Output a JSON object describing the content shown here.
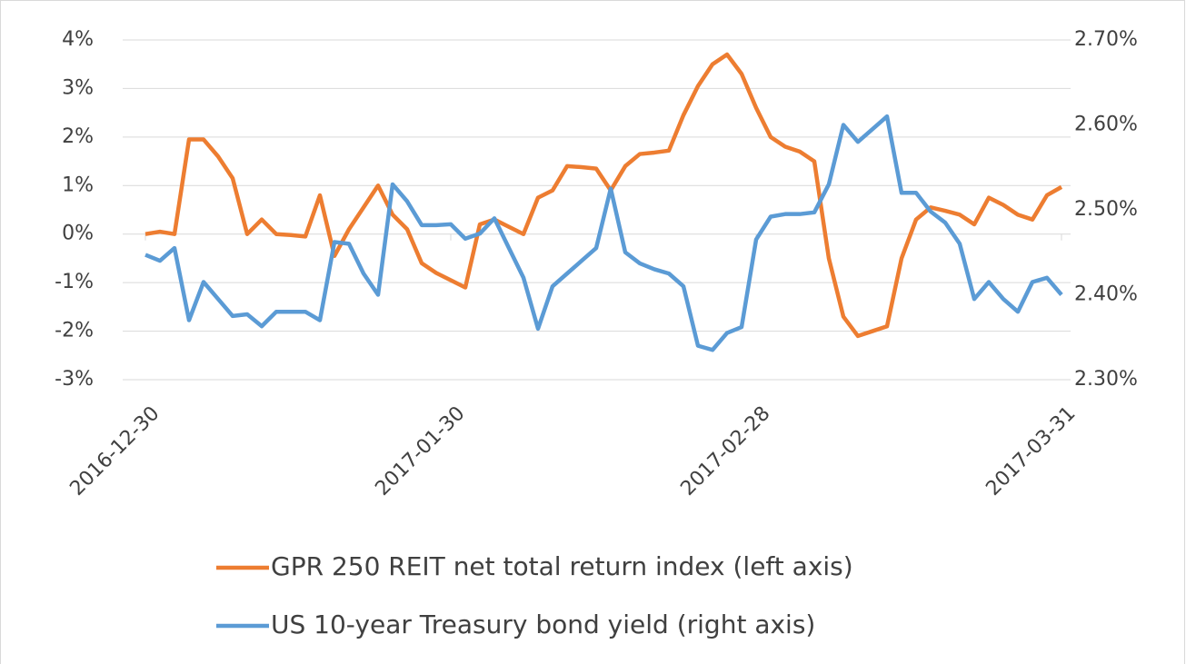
{
  "chart_data": {
    "type": "line",
    "categories": [
      "2016-12-30",
      null,
      null,
      null,
      null,
      null,
      null,
      null,
      null,
      null,
      null,
      null,
      null,
      null,
      null,
      null,
      null,
      null,
      null,
      null,
      null,
      "2017-01-30",
      null,
      null,
      null,
      null,
      null,
      null,
      null,
      null,
      null,
      null,
      null,
      null,
      null,
      null,
      null,
      null,
      null,
      null,
      null,
      null,
      "2017-02-28",
      null,
      null,
      null,
      null,
      null,
      null,
      null,
      null,
      null,
      null,
      null,
      null,
      null,
      null,
      null,
      null,
      null,
      null,
      null,
      null,
      "2017-03-31"
    ],
    "series": [
      {
        "name": "GPR 250 REIT net total return index (left axis)",
        "color": "#ed7d31",
        "axis": "y",
        "values": [
          0.0,
          0.05,
          0.0,
          1.95,
          1.95,
          1.6,
          1.15,
          0.0,
          0.3,
          0.0,
          -0.02,
          -0.05,
          0.8,
          -0.45,
          0.1,
          0.55,
          1.0,
          0.4,
          0.1,
          -0.6,
          -0.8,
          -0.95,
          -1.1,
          0.2,
          0.3,
          0.15,
          0.0,
          0.75,
          0.9,
          1.4,
          1.38,
          1.35,
          0.9,
          1.4,
          1.65,
          1.68,
          1.72,
          2.45,
          3.05,
          3.5,
          3.7,
          3.3,
          2.6,
          2.0,
          1.8,
          1.7,
          1.5,
          -0.5,
          -1.7,
          -2.1,
          -2.0,
          -1.9,
          -0.5,
          0.3,
          0.55,
          0.48,
          0.4,
          0.2,
          0.75,
          0.6,
          0.4,
          0.3,
          0.8,
          0.97
        ]
      },
      {
        "name": "US 10-year Treasury bond yield (right axis)",
        "color": "#5b9bd5",
        "axis": "y2",
        "values": [
          2.447,
          2.44,
          2.455,
          2.37,
          2.415,
          2.395,
          2.375,
          2.377,
          2.363,
          2.38,
          2.38,
          2.38,
          2.37,
          2.462,
          2.46,
          2.425,
          2.4,
          2.53,
          2.51,
          2.482,
          2.482,
          2.483,
          2.466,
          2.472,
          2.49,
          2.455,
          2.42,
          2.36,
          2.41,
          2.425,
          2.44,
          2.455,
          2.525,
          2.45,
          2.437,
          2.43,
          2.425,
          2.41,
          2.34,
          2.335,
          2.355,
          2.362,
          2.465,
          2.492,
          2.495,
          2.495,
          2.497,
          2.53,
          2.6,
          2.58,
          2.595,
          2.61,
          2.52,
          2.52,
          2.498,
          2.485,
          2.46,
          2.395,
          2.415,
          2.395,
          2.38,
          2.415,
          2.42,
          2.4
        ]
      }
    ],
    "ylim": [
      -3,
      4
    ],
    "yticks": [
      {
        "value": -3,
        "label": "-3%"
      },
      {
        "value": -2,
        "label": "-2%"
      },
      {
        "value": -1,
        "label": "-1%"
      },
      {
        "value": 0,
        "label": "0%"
      },
      {
        "value": 1,
        "label": "1%"
      },
      {
        "value": 2,
        "label": "2%"
      },
      {
        "value": 3,
        "label": "3%"
      },
      {
        "value": 4,
        "label": "4%"
      }
    ],
    "y2lim": [
      2.3,
      2.7
    ],
    "y2ticks": [
      {
        "value": 2.3,
        "label": "2.30%"
      },
      {
        "value": 2.4,
        "label": "2.40%"
      },
      {
        "value": 2.5,
        "label": "2.50%"
      },
      {
        "value": 2.6,
        "label": "2.60%"
      },
      {
        "value": 2.7,
        "label": "2.70%"
      }
    ],
    "grid": true,
    "legend": "bottom"
  }
}
